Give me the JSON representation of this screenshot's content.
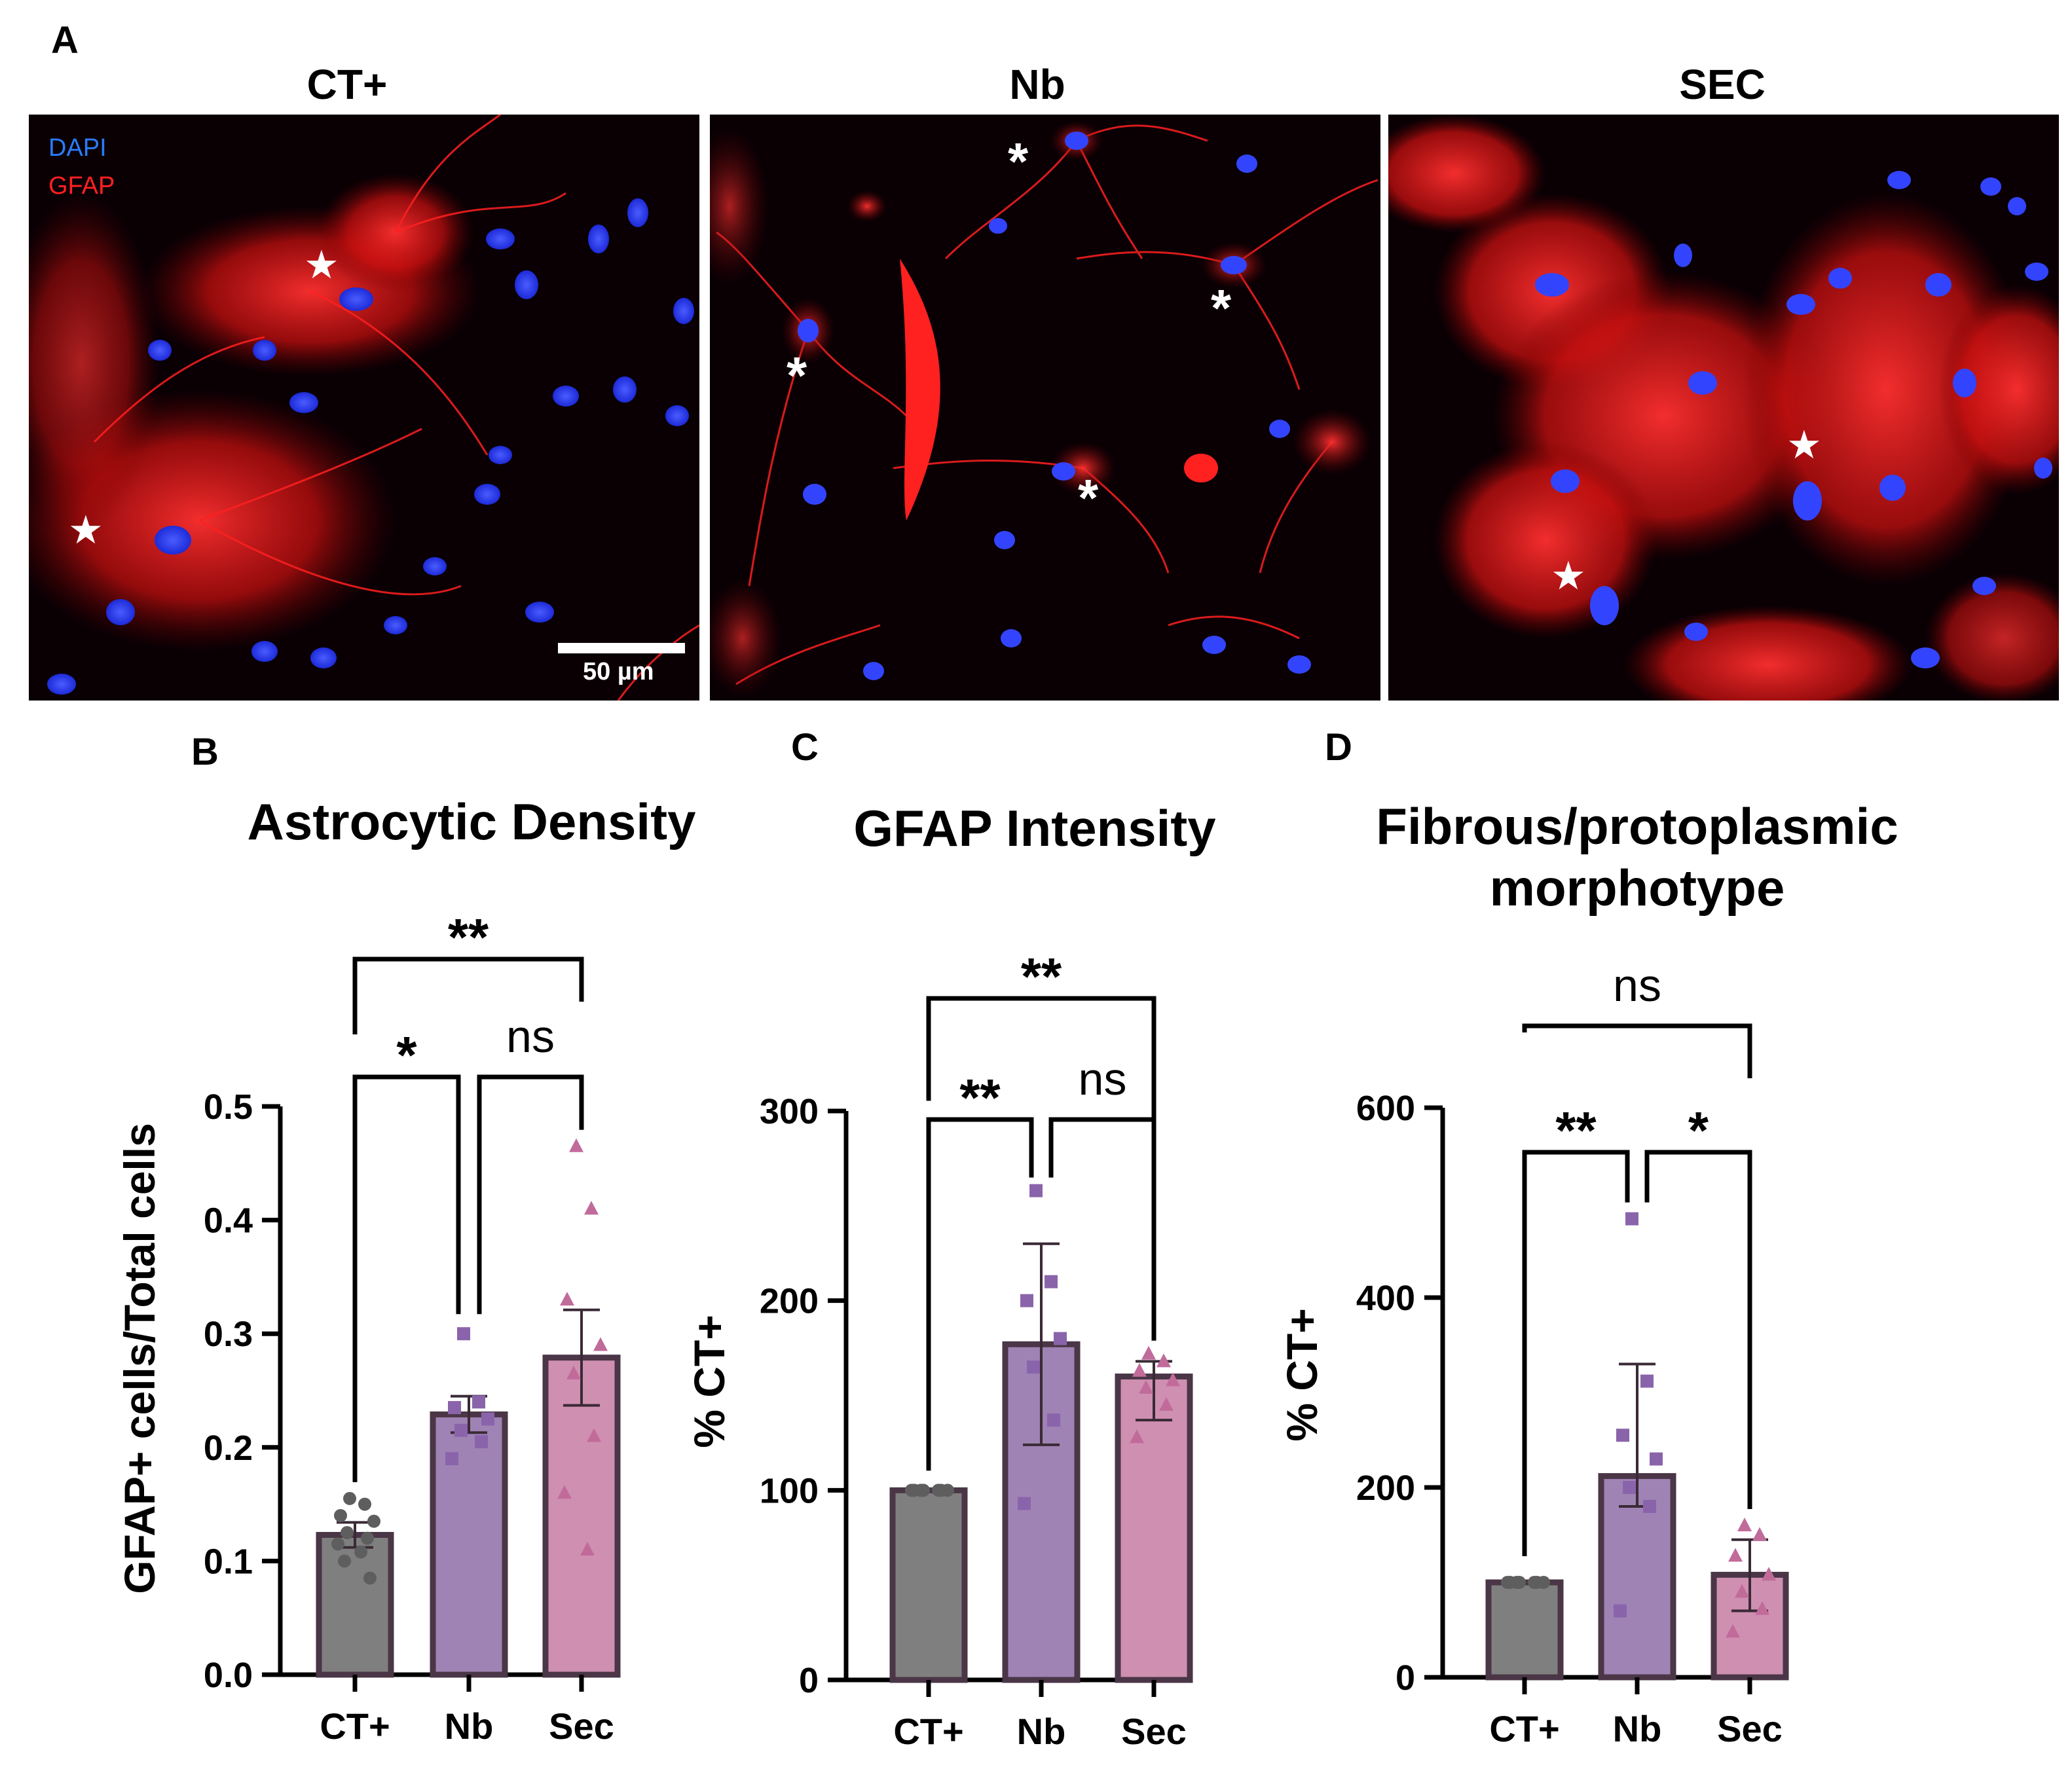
{
  "panel_a": {
    "letter": "A",
    "images": [
      {
        "title": "CT+",
        "legend": [
          "DAPI",
          "GFAP"
        ],
        "scale_bar": "50 µm",
        "markers": [
          "★",
          "★"
        ]
      },
      {
        "title": "Nb",
        "markers": [
          "*",
          "*",
          "*",
          "*"
        ]
      },
      {
        "title": "SEC",
        "markers": [
          "★",
          "★"
        ]
      }
    ]
  },
  "colors": {
    "ct": "#7f7f7f",
    "nb": "#9f83b4",
    "sec": "#cf8fb1",
    "ct_point": "#5e5e5e",
    "nb_point": "#8a64ab",
    "sec_point": "#c16b9b",
    "bar_edge": "#4a3646",
    "dapi": "#2a7bff",
    "gfap": "#ff1010"
  },
  "chart_data": [
    {
      "letter": "B",
      "type": "bar",
      "title": "Astrocytic Density",
      "ylabel": "GFAP+ cells/Total cells",
      "xlabel": "",
      "categories": [
        "CT+",
        "Nb",
        "Sec"
      ],
      "values": [
        0.123,
        0.229,
        0.279
      ],
      "errors": [
        [
          0.112,
          0.134
        ],
        [
          0.213,
          0.245
        ],
        [
          0.237,
          0.321
        ]
      ],
      "ylim": [
        0.0,
        0.5
      ],
      "yticks": [
        "0.0",
        "0.1",
        "0.2",
        "0.3",
        "0.4",
        "0.5"
      ],
      "points": [
        [
          0.155,
          0.15,
          0.14,
          0.135,
          0.125,
          0.12,
          0.115,
          0.108,
          0.1,
          0.085
        ],
        [
          0.3,
          0.24,
          0.235,
          0.225,
          0.215,
          0.205,
          0.19
        ],
        [
          0.465,
          0.41,
          0.33,
          0.29,
          0.265,
          0.21,
          0.16,
          0.11
        ]
      ],
      "markers": [
        "circle",
        "square",
        "triangle"
      ],
      "comparisons": [
        {
          "pair": [
            0,
            1
          ],
          "label": "*"
        },
        {
          "pair": [
            1,
            2
          ],
          "label": "ns"
        },
        {
          "pair": [
            0,
            2
          ],
          "label": "**"
        }
      ]
    },
    {
      "letter": "C",
      "type": "bar",
      "title": "GFAP Intensity",
      "ylabel": "% CT+",
      "xlabel": "",
      "categories": [
        "CT+",
        "Nb",
        "Sec"
      ],
      "values": [
        100,
        177,
        160
      ],
      "errors": [
        [
          100,
          100
        ],
        [
          124,
          230
        ],
        [
          137,
          168
        ]
      ],
      "ylim": [
        0,
        300
      ],
      "yticks": [
        "0",
        "100",
        "200",
        "300"
      ],
      "points": [
        [
          100,
          100,
          100,
          100,
          100,
          100,
          100
        ],
        [
          258,
          210,
          200,
          180,
          165,
          137,
          93
        ],
        [
          172,
          168,
          163,
          158,
          154,
          145,
          128
        ]
      ],
      "markers": [
        "circle",
        "square",
        "triangle"
      ],
      "comparisons": [
        {
          "pair": [
            0,
            1
          ],
          "label": "**"
        },
        {
          "pair": [
            1,
            2
          ],
          "label": "ns"
        },
        {
          "pair": [
            0,
            2
          ],
          "label": "**"
        }
      ]
    },
    {
      "letter": "D",
      "type": "bar",
      "title": "Fibrous/protoplasmic morphotype",
      "ylabel": "% CT+",
      "xlabel": "",
      "categories": [
        "CT+",
        "Nb",
        "Sec"
      ],
      "values": [
        100,
        212,
        108
      ],
      "errors": [
        [
          100,
          100
        ],
        [
          180,
          330
        ],
        [
          70,
          145
        ]
      ],
      "ylim": [
        0,
        600
      ],
      "yticks": [
        "0",
        "200",
        "400",
        "600"
      ],
      "points": [
        [
          100,
          100,
          100,
          100,
          100,
          100,
          100
        ],
        [
          483,
          312,
          255,
          230,
          200,
          180,
          70
        ],
        [
          160,
          150,
          128,
          108,
          90,
          72,
          48
        ]
      ],
      "markers": [
        "circle",
        "square",
        "triangle"
      ],
      "comparisons": [
        {
          "pair": [
            0,
            1
          ],
          "label": "**"
        },
        {
          "pair": [
            1,
            2
          ],
          "label": "*"
        },
        {
          "pair": [
            0,
            2
          ],
          "label": "ns"
        }
      ]
    }
  ]
}
